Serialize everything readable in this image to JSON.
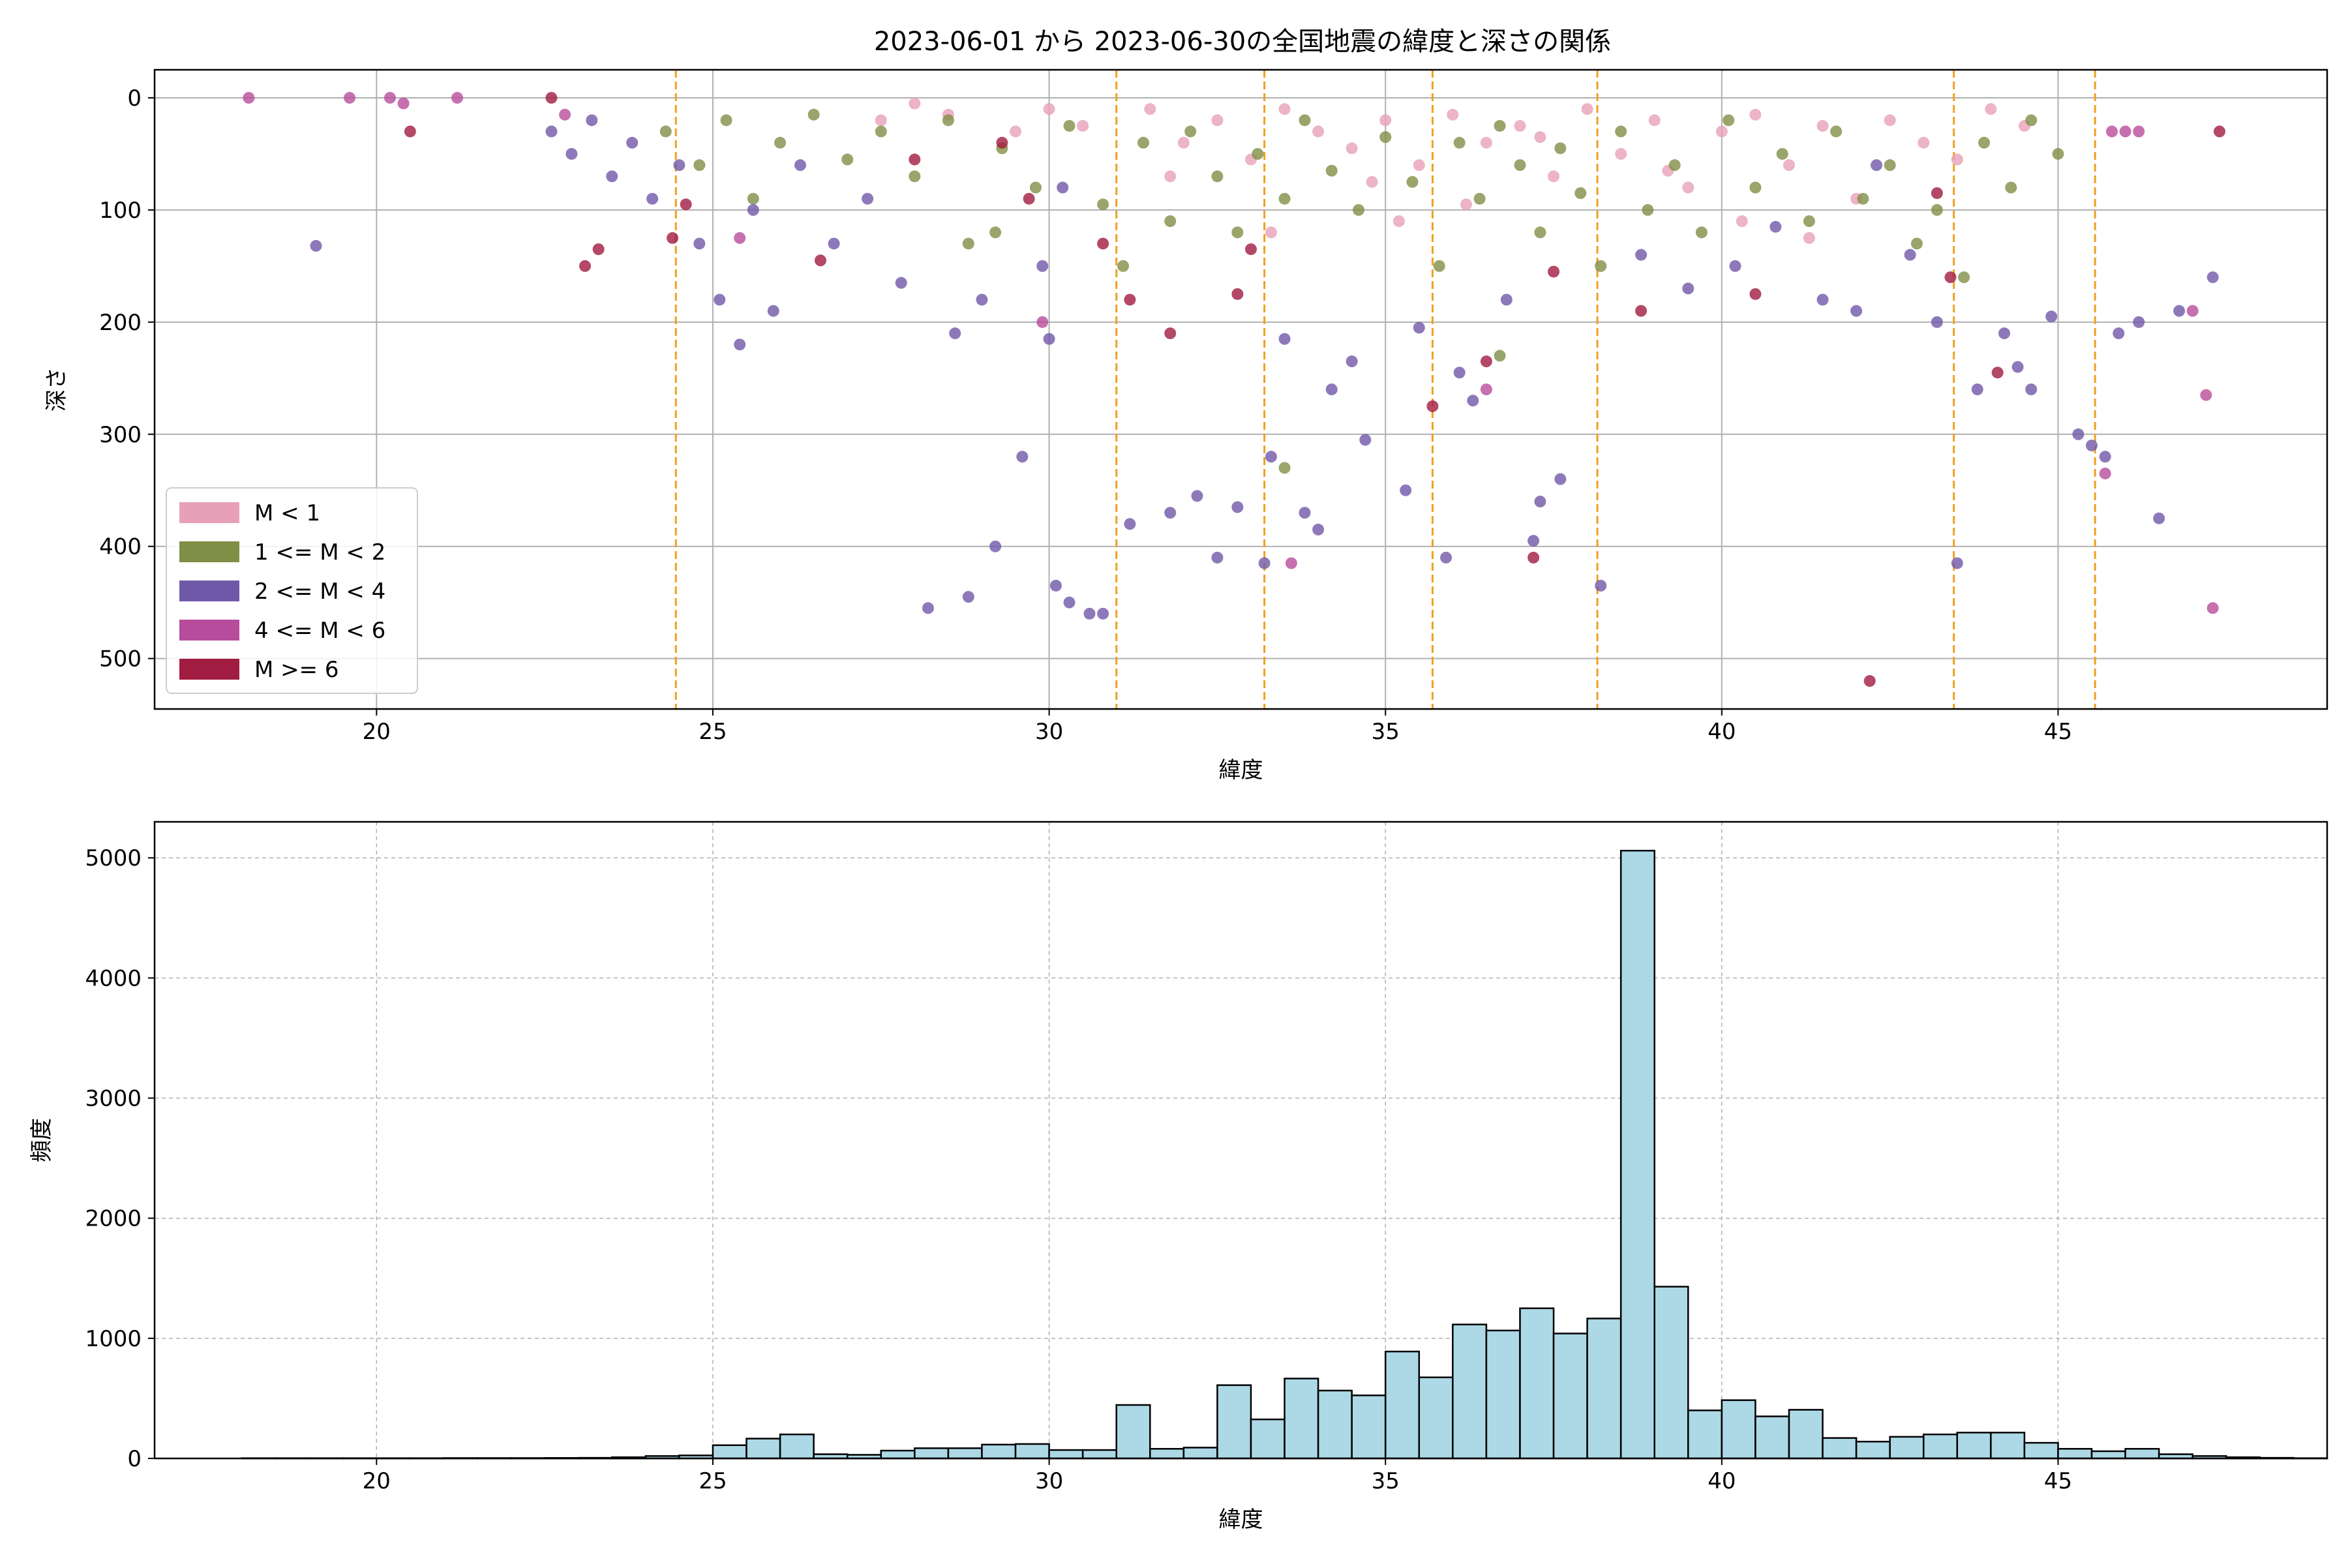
{
  "title": "2023-06-01 から 2023-06-30の全国地震の緯度と深さの関係",
  "colors": {
    "m_lt1": "#e8a0b8",
    "m_1_2": "#7f8f45",
    "m_2_4": "#7058a8",
    "m_4_6": "#b84c9c",
    "m_ge6": "#a01c40",
    "vline": "#f0a020",
    "bar_fill": "#add8e6",
    "bar_edge": "#000000",
    "grid": "#b0b0b0"
  },
  "chart_data": [
    {
      "type": "scatter",
      "title": "2023-06-01 から 2023-06-30の全国地震の緯度と深さの関係",
      "xlabel": "緯度",
      "ylabel": "深さ",
      "xlim": [
        16.7,
        49.0
      ],
      "ylim": [
        545,
        -25
      ],
      "y_inverted": true,
      "xticks": [
        20,
        25,
        30,
        35,
        40,
        45
      ],
      "yticks": [
        0,
        100,
        200,
        300,
        400,
        500
      ],
      "grid": true,
      "legend_position": "lower-left",
      "legend": [
        "M < 1",
        "1 <= M < 2",
        "2 <= M < 4",
        "4 <= M < 6",
        "M >= 6"
      ],
      "vertical_lines_x": [
        24.45,
        31.0,
        33.2,
        35.7,
        38.15,
        43.45,
        45.55
      ],
      "series": [
        {
          "name": "M < 1",
          "points": [
            [
              27.5,
              20
            ],
            [
              28.5,
              15
            ],
            [
              29.5,
              30
            ],
            [
              30.5,
              25
            ],
            [
              31.5,
              10
            ],
            [
              32.0,
              40
            ],
            [
              32.5,
              20
            ],
            [
              33.0,
              55
            ],
            [
              33.5,
              10
            ],
            [
              34.0,
              30
            ],
            [
              34.5,
              45
            ],
            [
              35.0,
              20
            ],
            [
              35.5,
              60
            ],
            [
              36.0,
              15
            ],
            [
              36.5,
              40
            ],
            [
              37.0,
              25
            ],
            [
              37.5,
              70
            ],
            [
              38.0,
              10
            ],
            [
              38.5,
              50
            ],
            [
              39.0,
              20
            ],
            [
              39.5,
              80
            ],
            [
              40.0,
              30
            ],
            [
              40.5,
              15
            ],
            [
              41.0,
              60
            ],
            [
              41.5,
              25
            ],
            [
              42.0,
              90
            ],
            [
              42.5,
              20
            ],
            [
              43.0,
              40
            ],
            [
              44.0,
              10
            ],
            [
              44.5,
              25
            ],
            [
              33.3,
              120
            ],
            [
              35.2,
              110
            ],
            [
              36.2,
              95
            ],
            [
              34.8,
              75
            ],
            [
              40.3,
              110
            ],
            [
              41.3,
              125
            ],
            [
              28.0,
              5
            ],
            [
              30.0,
              10
            ],
            [
              31.8,
              70
            ],
            [
              37.3,
              35
            ],
            [
              43.5,
              55
            ],
            [
              39.2,
              65
            ]
          ]
        },
        {
          "name": "1 <= M < 2",
          "points": [
            [
              24.3,
              30
            ],
            [
              24.8,
              60
            ],
            [
              25.2,
              20
            ],
            [
              25.6,
              90
            ],
            [
              26.0,
              40
            ],
            [
              26.5,
              15
            ],
            [
              27.0,
              55
            ],
            [
              27.5,
              30
            ],
            [
              28.0,
              70
            ],
            [
              28.5,
              20
            ],
            [
              28.8,
              130
            ],
            [
              29.3,
              45
            ],
            [
              29.8,
              80
            ],
            [
              30.3,
              25
            ],
            [
              30.8,
              95
            ],
            [
              31.1,
              150
            ],
            [
              31.4,
              40
            ],
            [
              31.8,
              110
            ],
            [
              32.1,
              30
            ],
            [
              32.5,
              70
            ],
            [
              32.8,
              120
            ],
            [
              33.1,
              50
            ],
            [
              33.5,
              90
            ],
            [
              33.8,
              20
            ],
            [
              34.2,
              65
            ],
            [
              34.6,
              100
            ],
            [
              35.0,
              35
            ],
            [
              35.4,
              75
            ],
            [
              35.8,
              150
            ],
            [
              36.1,
              40
            ],
            [
              36.4,
              90
            ],
            [
              36.7,
              25
            ],
            [
              37.0,
              60
            ],
            [
              37.3,
              120
            ],
            [
              37.6,
              45
            ],
            [
              37.9,
              85
            ],
            [
              38.2,
              150
            ],
            [
              38.5,
              30
            ],
            [
              38.9,
              100
            ],
            [
              39.3,
              60
            ],
            [
              39.7,
              120
            ],
            [
              40.1,
              20
            ],
            [
              40.5,
              80
            ],
            [
              40.9,
              50
            ],
            [
              41.3,
              110
            ],
            [
              41.7,
              30
            ],
            [
              42.1,
              90
            ],
            [
              42.5,
              60
            ],
            [
              42.9,
              130
            ],
            [
              43.2,
              100
            ],
            [
              43.6,
              160
            ],
            [
              43.9,
              40
            ],
            [
              44.3,
              80
            ],
            [
              44.6,
              20
            ],
            [
              45.0,
              50
            ],
            [
              36.7,
              230
            ],
            [
              29.2,
              120
            ],
            [
              33.5,
              330
            ]
          ]
        },
        {
          "name": "2 <= M < 4",
          "points": [
            [
              22.6,
              30
            ],
            [
              22.9,
              50
            ],
            [
              23.2,
              20
            ],
            [
              23.5,
              70
            ],
            [
              23.8,
              40
            ],
            [
              24.1,
              90
            ],
            [
              24.5,
              60
            ],
            [
              24.8,
              130
            ],
            [
              25.1,
              180
            ],
            [
              25.4,
              220
            ],
            [
              25.6,
              100
            ],
            [
              25.9,
              190
            ],
            [
              26.3,
              60
            ],
            [
              26.8,
              130
            ],
            [
              27.3,
              90
            ],
            [
              27.8,
              165
            ],
            [
              28.2,
              455
            ],
            [
              28.6,
              210
            ],
            [
              28.8,
              445
            ],
            [
              29.0,
              180
            ],
            [
              29.2,
              400
            ],
            [
              29.6,
              320
            ],
            [
              29.9,
              150
            ],
            [
              30.0,
              215
            ],
            [
              30.1,
              435
            ],
            [
              30.3,
              450
            ],
            [
              30.6,
              460
            ],
            [
              30.8,
              460
            ],
            [
              30.2,
              80
            ],
            [
              31.2,
              380
            ],
            [
              31.8,
              370
            ],
            [
              32.2,
              355
            ],
            [
              32.5,
              410
            ],
            [
              32.8,
              365
            ],
            [
              33.2,
              415
            ],
            [
              33.3,
              320
            ],
            [
              33.5,
              215
            ],
            [
              33.8,
              370
            ],
            [
              34.0,
              385
            ],
            [
              34.2,
              260
            ],
            [
              34.5,
              235
            ],
            [
              34.7,
              305
            ],
            [
              35.3,
              350
            ],
            [
              35.5,
              205
            ],
            [
              35.9,
              410
            ],
            [
              36.1,
              245
            ],
            [
              36.3,
              270
            ],
            [
              36.8,
              180
            ],
            [
              37.2,
              395
            ],
            [
              37.3,
              360
            ],
            [
              37.6,
              340
            ],
            [
              38.2,
              435
            ],
            [
              38.8,
              140
            ],
            [
              39.5,
              170
            ],
            [
              40.2,
              150
            ],
            [
              40.8,
              115
            ],
            [
              41.5,
              180
            ],
            [
              42.0,
              190
            ],
            [
              42.3,
              60
            ],
            [
              42.8,
              140
            ],
            [
              43.2,
              200
            ],
            [
              43.5,
              415
            ],
            [
              43.8,
              260
            ],
            [
              44.2,
              210
            ],
            [
              44.4,
              240
            ],
            [
              44.6,
              260
            ],
            [
              44.9,
              195
            ],
            [
              45.3,
              300
            ],
            [
              45.5,
              310
            ],
            [
              45.7,
              320
            ],
            [
              45.9,
              210
            ],
            [
              46.2,
              200
            ],
            [
              46.5,
              375
            ],
            [
              46.8,
              190
            ],
            [
              47.3,
              160
            ],
            [
              19.1,
              132
            ]
          ]
        },
        {
          "name": "4 <= M < 6",
          "points": [
            [
              18.1,
              0
            ],
            [
              19.6,
              0
            ],
            [
              20.2,
              0
            ],
            [
              20.4,
              5
            ],
            [
              21.2,
              0
            ],
            [
              22.8,
              15
            ],
            [
              25.4,
              125
            ],
            [
              29.9,
              200
            ],
            [
              33.6,
              415
            ],
            [
              36.5,
              260
            ],
            [
              45.7,
              335
            ],
            [
              45.8,
              30
            ],
            [
              46.0,
              30
            ],
            [
              46.2,
              30
            ],
            [
              47.0,
              190
            ],
            [
              47.2,
              265
            ],
            [
              47.3,
              455
            ]
          ]
        },
        {
          "name": "M >= 6",
          "points": [
            [
              20.5,
              30
            ],
            [
              22.6,
              0
            ],
            [
              23.1,
              150
            ],
            [
              23.3,
              135
            ],
            [
              24.4,
              125
            ],
            [
              24.6,
              95
            ],
            [
              26.6,
              145
            ],
            [
              28.0,
              55
            ],
            [
              29.3,
              40
            ],
            [
              29.7,
              90
            ],
            [
              30.8,
              130
            ],
            [
              31.2,
              180
            ],
            [
              31.8,
              210
            ],
            [
              32.8,
              175
            ],
            [
              33.0,
              135
            ],
            [
              35.7,
              275
            ],
            [
              36.5,
              235
            ],
            [
              37.2,
              410
            ],
            [
              37.5,
              155
            ],
            [
              38.8,
              190
            ],
            [
              40.5,
              175
            ],
            [
              42.2,
              520
            ],
            [
              43.2,
              85
            ],
            [
              43.4,
              160
            ],
            [
              44.1,
              245
            ],
            [
              47.4,
              30
            ]
          ]
        }
      ]
    },
    {
      "type": "bar",
      "subtype": "histogram",
      "xlabel": "緯度",
      "ylabel": "頻度",
      "xlim": [
        16.7,
        49.0
      ],
      "ylim": [
        0,
        5300
      ],
      "xticks": [
        20,
        25,
        30,
        35,
        40,
        45
      ],
      "yticks": [
        0,
        1000,
        2000,
        3000,
        4000,
        5000
      ],
      "grid": true,
      "bin_start": 18.0,
      "bin_width": 0.5,
      "values": [
        2,
        2,
        2,
        2,
        2,
        2,
        3,
        3,
        3,
        4,
        5,
        10,
        20,
        25,
        110,
        165,
        200,
        35,
        30,
        65,
        85,
        85,
        115,
        120,
        70,
        70,
        445,
        80,
        90,
        610,
        325,
        665,
        565,
        525,
        890,
        675,
        1115,
        1065,
        1250,
        1040,
        1165,
        5060,
        1430,
        400,
        485,
        350,
        405,
        170,
        140,
        180,
        200,
        215,
        215,
        130,
        80,
        60,
        80,
        35,
        20,
        10,
        5,
        2
      ]
    }
  ]
}
